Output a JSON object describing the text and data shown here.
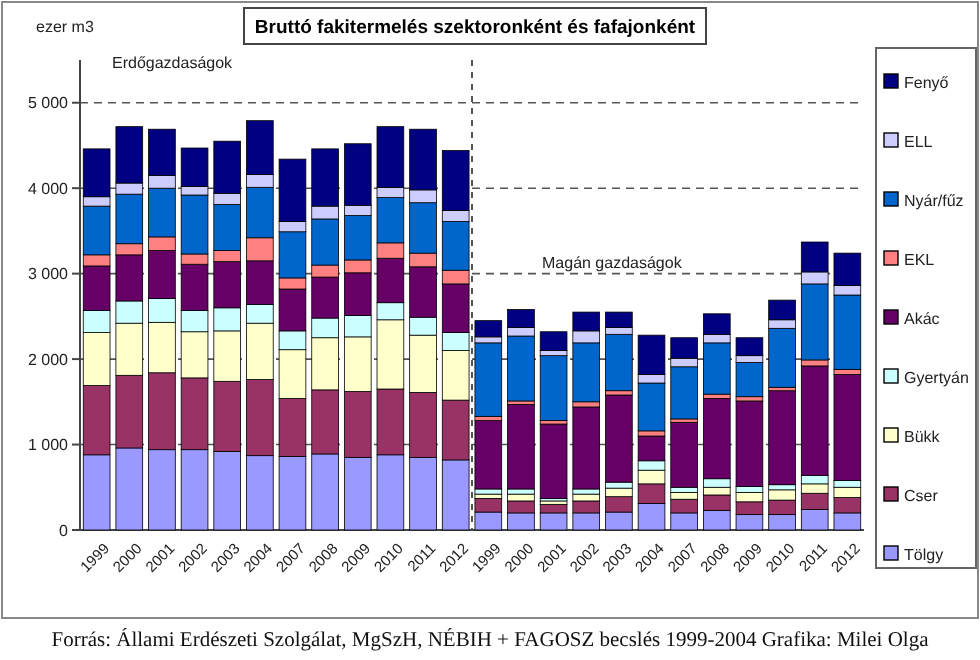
{
  "chart_data": {
    "type": "bar",
    "stacked": true,
    "title": "Bruttó fakitermelés szektoronként és fafajonként",
    "ylabel": "ezer m3",
    "categories": [
      "1999",
      "2000",
      "2001",
      "2002",
      "2003",
      "2004",
      "2007",
      "2008",
      "2009",
      "2010",
      "2011",
      "2012",
      "1999",
      "2000",
      "2001",
      "2002",
      "2003",
      "2004",
      "2007",
      "2008",
      "2009",
      "2010",
      "2011",
      "2012"
    ],
    "ylim": [
      0,
      5500
    ],
    "yticks": [
      {
        "value": 0,
        "label": "0"
      },
      {
        "value": 1000,
        "label": "1 000"
      },
      {
        "value": 2000,
        "label": "2 000"
      },
      {
        "value": 3000,
        "label": "3 000"
      },
      {
        "value": 4000,
        "label": "4 000"
      },
      {
        "value": 5000,
        "label": "5 000"
      }
    ],
    "grid": "y",
    "legend": "right",
    "series": [
      {
        "name": "Tölgy",
        "color": "#9999ff",
        "values": [
          880,
          960,
          940,
          940,
          920,
          870,
          860,
          890,
          850,
          880,
          850,
          820,
          210,
          200,
          200,
          200,
          210,
          310,
          200,
          230,
          180,
          180,
          240,
          200
        ]
      },
      {
        "name": "Cser",
        "color": "#993366",
        "values": [
          810,
          850,
          900,
          840,
          820,
          890,
          680,
          750,
          770,
          770,
          760,
          700,
          160,
          140,
          100,
          140,
          180,
          230,
          160,
          180,
          150,
          170,
          190,
          180
        ]
      },
      {
        "name": "Bükk",
        "color": "#ffffcc",
        "values": [
          620,
          610,
          590,
          540,
          590,
          660,
          570,
          610,
          640,
          810,
          670,
          580,
          50,
          80,
          40,
          80,
          100,
          160,
          80,
          90,
          110,
          120,
          110,
          120
        ]
      },
      {
        "name": "Gyertyán",
        "color": "#ccffff",
        "values": [
          260,
          260,
          280,
          250,
          270,
          220,
          220,
          230,
          250,
          200,
          210,
          210,
          60,
          60,
          30,
          60,
          70,
          110,
          60,
          100,
          70,
          60,
          100,
          80
        ]
      },
      {
        "name": "Akác",
        "color": "#660066",
        "values": [
          520,
          540,
          560,
          540,
          540,
          510,
          490,
          480,
          500,
          520,
          590,
          570,
          800,
          990,
          870,
          960,
          1020,
          290,
          760,
          940,
          1000,
          1100,
          1280,
          1240
        ]
      },
      {
        "name": "EKL",
        "color": "#ff8080",
        "values": [
          130,
          130,
          160,
          120,
          130,
          270,
          130,
          140,
          150,
          180,
          160,
          160,
          50,
          40,
          40,
          60,
          50,
          60,
          40,
          50,
          50,
          40,
          70,
          60
        ]
      },
      {
        "name": "Nyár/fűz",
        "color": "#0066cc",
        "values": [
          570,
          580,
          570,
          690,
          540,
          590,
          540,
          540,
          520,
          530,
          590,
          570,
          860,
          760,
          760,
          690,
          660,
          560,
          610,
          600,
          400,
          690,
          890,
          870
        ]
      },
      {
        "name": "ELL",
        "color": "#ccccff",
        "values": [
          110,
          130,
          150,
          100,
          130,
          150,
          120,
          150,
          120,
          120,
          150,
          130,
          70,
          100,
          60,
          140,
          80,
          100,
          100,
          100,
          80,
          100,
          140,
          110
        ]
      },
      {
        "name": "Fenyő",
        "color": "#000080",
        "values": [
          560,
          660,
          540,
          450,
          610,
          630,
          730,
          670,
          720,
          710,
          710,
          700,
          190,
          210,
          220,
          220,
          180,
          460,
          240,
          240,
          210,
          230,
          350,
          380
        ]
      }
    ],
    "annotations": [
      "Erdőgazdaságok",
      "Magán gazdaságok",
      "Forrás: Állami Erdészeti Szolgálat, MgSzH, NÉBIH + FAGOSZ becslés 1999-2004 Grafika: Milei Olga"
    ]
  }
}
